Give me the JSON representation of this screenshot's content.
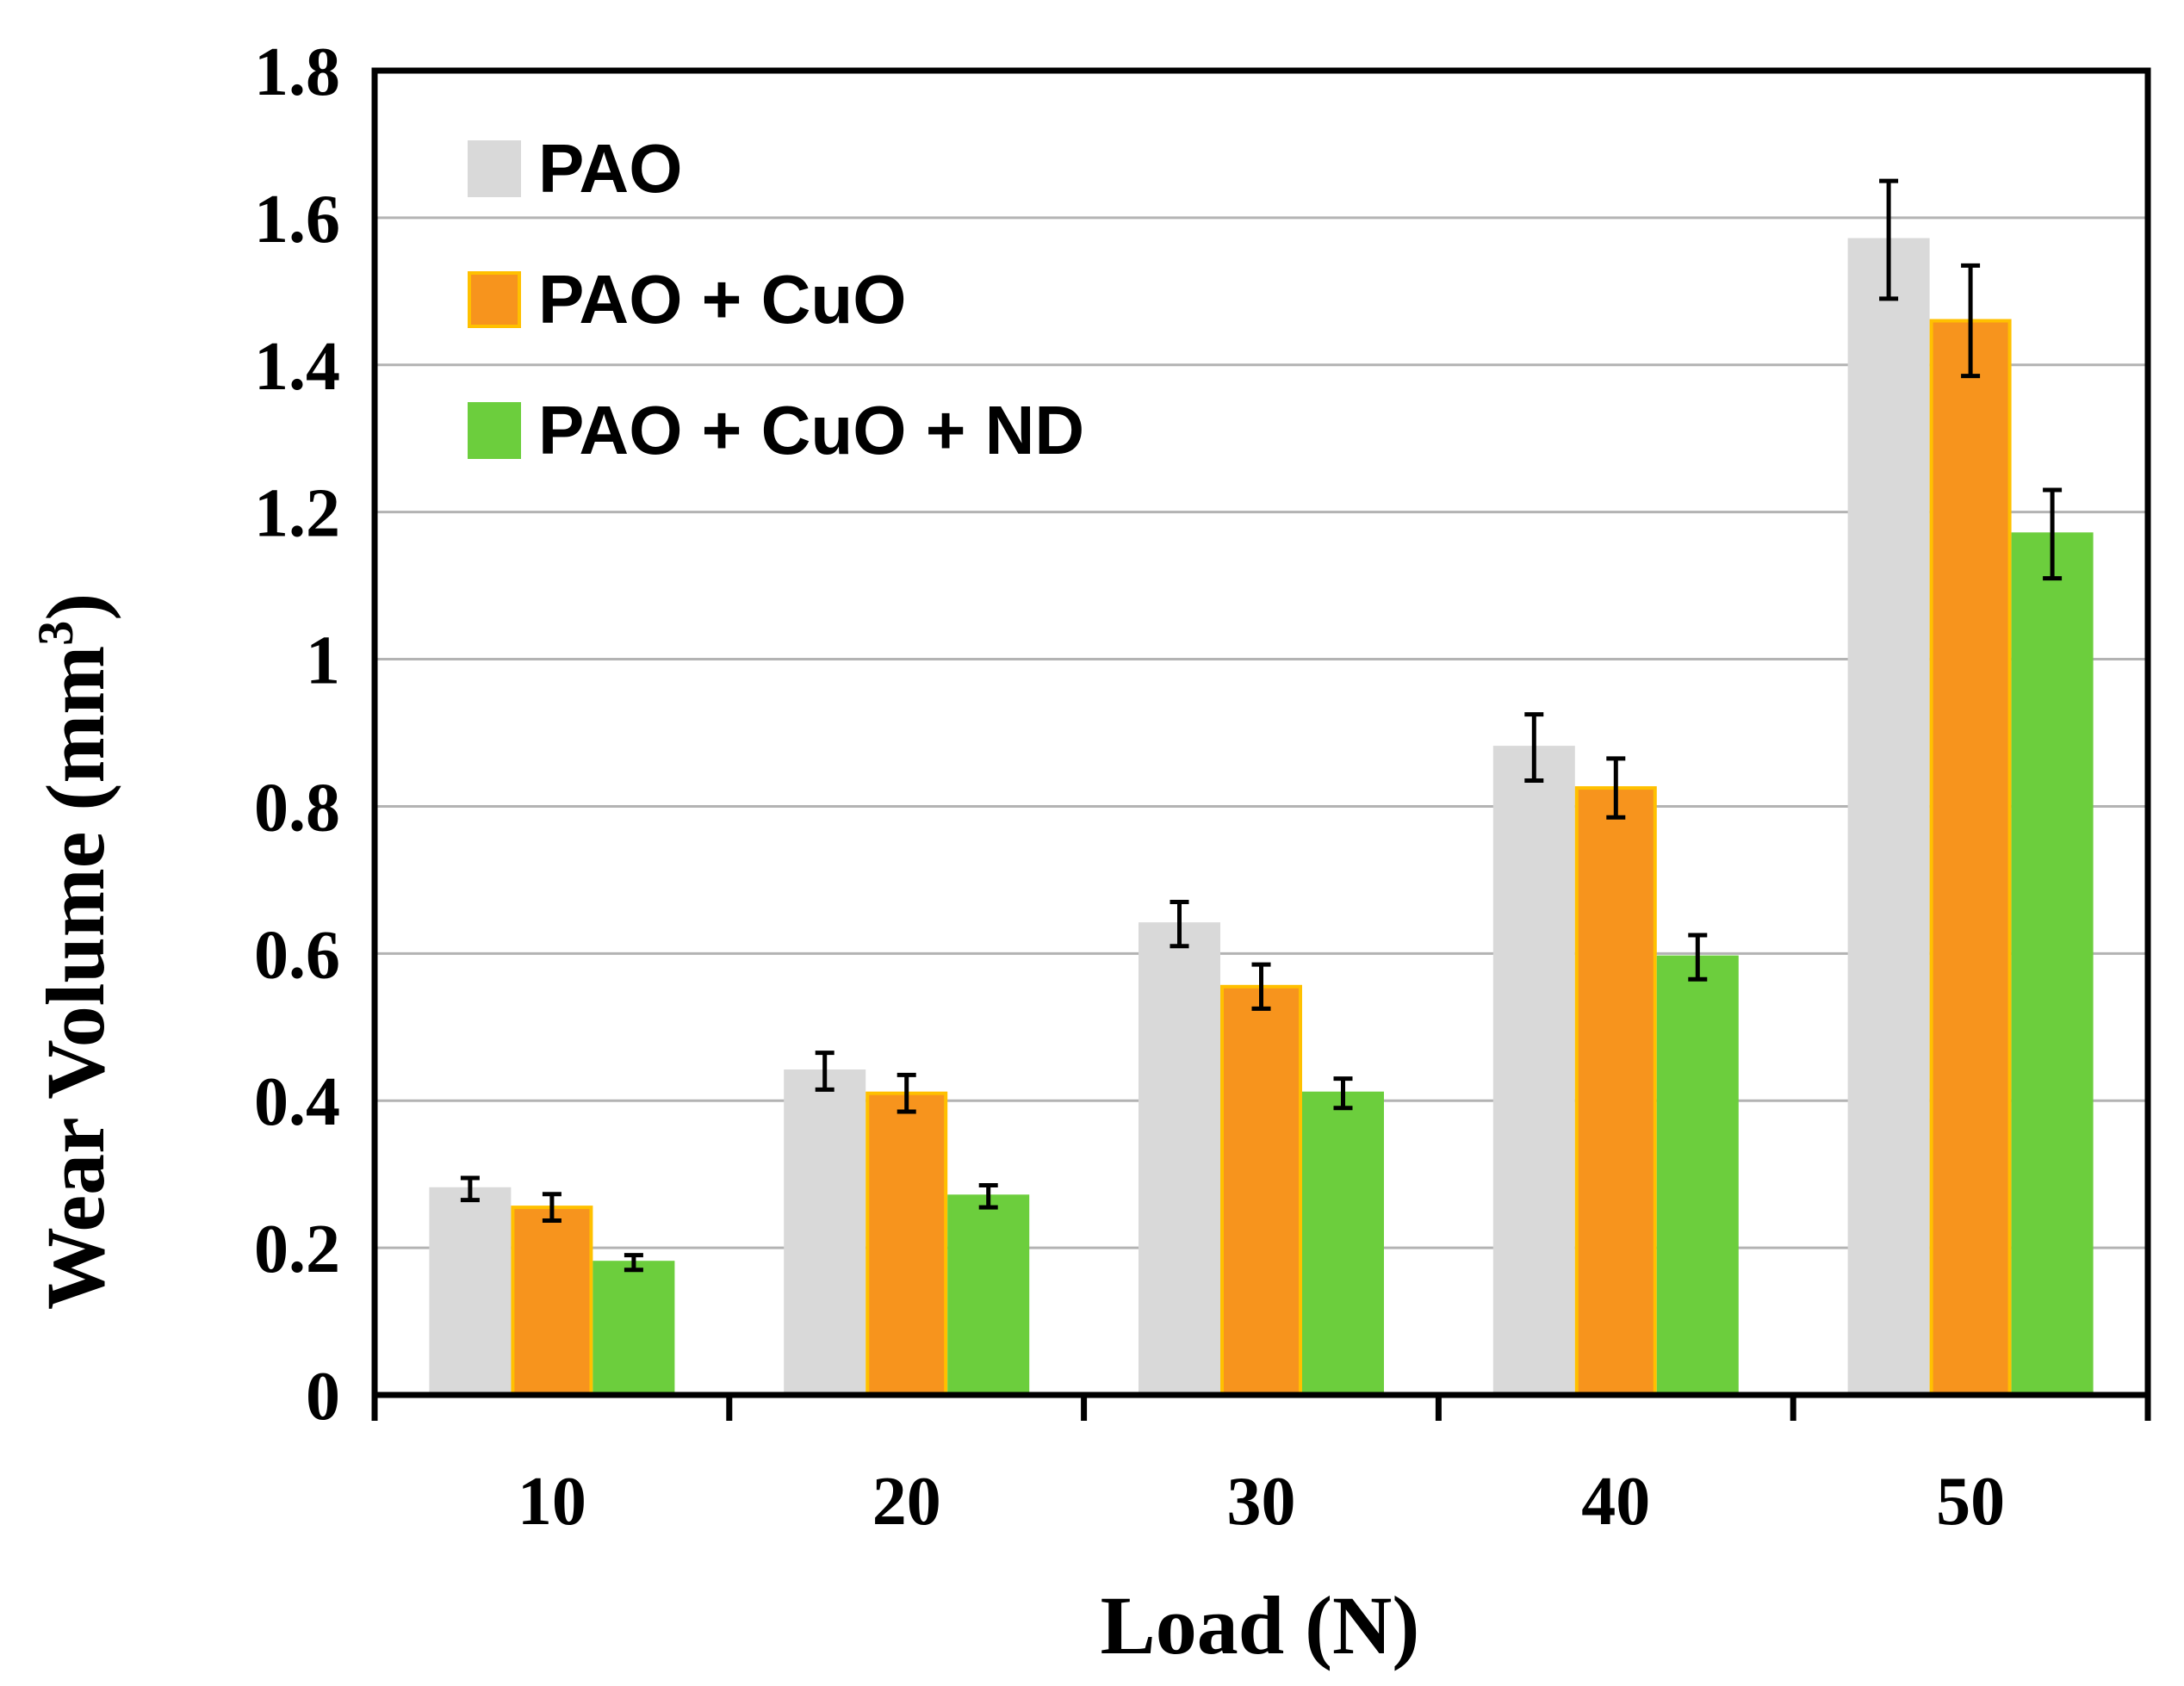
{
  "chart_data": {
    "type": "bar",
    "title": "",
    "xlabel": "Load (N)",
    "ylabel_main": "Wear Volume (mm",
    "ylabel_sup": "3",
    "ylabel_close": ")",
    "ylim": [
      0,
      1.8
    ],
    "yticks": [
      "0",
      "0.2",
      "0.4",
      "0.6",
      "0.8",
      "1",
      "1.2",
      "1.4",
      "1.6",
      "1.8"
    ],
    "categories": [
      "10",
      "20",
      "30",
      "40",
      "50"
    ],
    "grid": true,
    "legend_position": "top-left",
    "series": [
      {
        "name": "PAO",
        "color": "#d9d9d9",
        "edge": "#d9d9d9",
        "values": [
          0.28,
          0.44,
          0.64,
          0.88,
          1.57
        ],
        "errors": [
          0.015,
          0.025,
          0.03,
          0.045,
          0.08
        ]
      },
      {
        "name": "PAO + CuO",
        "color": "#f7941d",
        "edge": "#ffc000",
        "values": [
          0.255,
          0.41,
          0.555,
          0.825,
          1.46
        ],
        "errors": [
          0.018,
          0.025,
          0.03,
          0.04,
          0.075
        ]
      },
      {
        "name": "PAO + CuO + ND",
        "color": "#6cce3d",
        "edge": "#6cce3d",
        "values": [
          0.18,
          0.27,
          0.41,
          0.595,
          1.17
        ],
        "errors": [
          0.01,
          0.015,
          0.02,
          0.03,
          0.06
        ]
      }
    ]
  }
}
